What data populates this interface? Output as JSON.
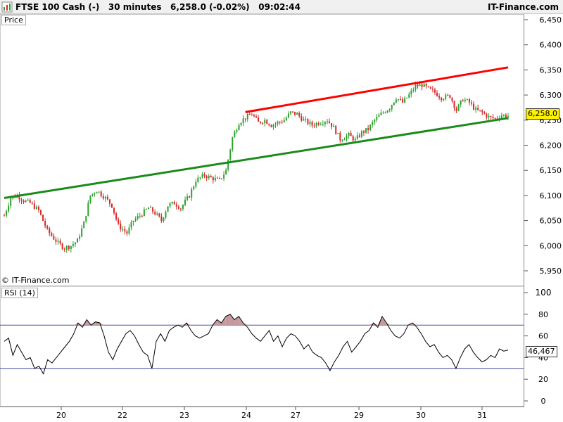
{
  "header": {
    "instrument": "FTSE 100 Cash (-)",
    "timeframe": "30 minutes",
    "quote": "6,258.0 (-0.02%)",
    "time": "09:02:44",
    "brand": "IT-Finance.com",
    "icon": "chart-app-icon"
  },
  "price_panel": {
    "label": "Price",
    "copyright": "© IT-Finance.com",
    "last_price_tag": "6,258.0",
    "last_price": 6258.0,
    "tag_color": "#fff200"
  },
  "rsi_panel": {
    "label": "RSI (14)",
    "value_tag": "46,467",
    "value": 46.467,
    "overbought": 70,
    "oversold": 30
  },
  "colors": {
    "up_candle": "#2ca02c",
    "down_candle": "#d62728",
    "resistance": "#ff0000",
    "support": "#1a8a1a",
    "rsi_line": "#000000",
    "rsi_fill": "#c49aa0",
    "threshold_line": "#4a4aa0"
  },
  "chart_data": [
    {
      "type": "candlestick",
      "title": "FTSE 100 Cash (-)",
      "x_tick_labels": [
        "20",
        "22",
        "23",
        "24",
        "27",
        "29",
        "30",
        "31"
      ],
      "y_tick_labels": [
        "6,450",
        "6,400",
        "6,350",
        "6,300",
        "6,250",
        "6,200",
        "6,150",
        "6,100",
        "6,050",
        "6,000",
        "5,950"
      ],
      "ylim": [
        5920,
        6475
      ],
      "grid": false,
      "close_points": [
        [
          0,
          6060
        ],
        [
          3,
          6095
        ],
        [
          6,
          6100
        ],
        [
          9,
          6090
        ],
        [
          12,
          6085
        ],
        [
          16,
          6070
        ],
        [
          20,
          6030
        ],
        [
          25,
          6005
        ],
        [
          28,
          5995
        ],
        [
          31,
          6000
        ],
        [
          34,
          6010
        ],
        [
          37,
          6045
        ],
        [
          40,
          6100
        ],
        [
          43,
          6110
        ],
        [
          47,
          6095
        ],
        [
          50,
          6080
        ],
        [
          53,
          6040
        ],
        [
          57,
          6025
        ],
        [
          60,
          6050
        ],
        [
          63,
          6060
        ],
        [
          67,
          6075
        ],
        [
          70,
          6065
        ],
        [
          73,
          6050
        ],
        [
          76,
          6080
        ],
        [
          79,
          6085
        ],
        [
          82,
          6075
        ],
        [
          86,
          6100
        ],
        [
          89,
          6130
        ],
        [
          93,
          6140
        ],
        [
          96,
          6135
        ],
        [
          100,
          6130
        ],
        [
          103,
          6150
        ],
        [
          106,
          6215
        ],
        [
          109,
          6245
        ],
        [
          112,
          6255
        ],
        [
          115,
          6262
        ],
        [
          118,
          6245
        ],
        [
          121,
          6250
        ],
        [
          124,
          6240
        ],
        [
          127,
          6245
        ],
        [
          130,
          6250
        ],
        [
          133,
          6265
        ],
        [
          136,
          6262
        ],
        [
          139,
          6250
        ],
        [
          143,
          6240
        ],
        [
          146,
          6245
        ],
        [
          150,
          6250
        ],
        [
          153,
          6235
        ],
        [
          156,
          6212
        ],
        [
          160,
          6220
        ],
        [
          163,
          6210
        ],
        [
          166,
          6225
        ],
        [
          169,
          6232
        ],
        [
          172,
          6250
        ],
        [
          175,
          6262
        ],
        [
          179,
          6275
        ],
        [
          182,
          6295
        ],
        [
          185,
          6285
        ],
        [
          188,
          6300
        ],
        [
          191,
          6318
        ],
        [
          194,
          6320
        ],
        [
          197,
          6312
        ],
        [
          200,
          6305
        ],
        [
          203,
          6295
        ],
        [
          207,
          6298
        ],
        [
          210,
          6270
        ],
        [
          213,
          6292
        ],
        [
          216,
          6285
        ],
        [
          219,
          6270
        ],
        [
          222,
          6265
        ],
        [
          225,
          6256
        ],
        [
          228,
          6253
        ],
        [
          231,
          6260
        ],
        [
          234,
          6258
        ]
      ],
      "trend_lines": [
        {
          "role": "resistance",
          "from": [
            112,
            6266
          ],
          "to": [
            234,
            6355
          ]
        },
        {
          "role": "support",
          "from": [
            0,
            6095
          ],
          "to": [
            234,
            6254
          ]
        }
      ]
    },
    {
      "type": "line",
      "title": "RSI (14)",
      "y_tick_labels": [
        "100",
        "80",
        "60",
        "40",
        "20",
        "0"
      ],
      "ylim": [
        0,
        100
      ],
      "values": [
        [
          0,
          55
        ],
        [
          2,
          58
        ],
        [
          4,
          42
        ],
        [
          6,
          52
        ],
        [
          8,
          45
        ],
        [
          10,
          38
        ],
        [
          12,
          40
        ],
        [
          14,
          30
        ],
        [
          16,
          32
        ],
        [
          18,
          25
        ],
        [
          20,
          38
        ],
        [
          22,
          35
        ],
        [
          24,
          40
        ],
        [
          26,
          45
        ],
        [
          28,
          50
        ],
        [
          30,
          55
        ],
        [
          32,
          62
        ],
        [
          34,
          72
        ],
        [
          36,
          68
        ],
        [
          38,
          75
        ],
        [
          40,
          70
        ],
        [
          42,
          73
        ],
        [
          44,
          72
        ],
        [
          46,
          60
        ],
        [
          48,
          45
        ],
        [
          50,
          38
        ],
        [
          52,
          48
        ],
        [
          54,
          55
        ],
        [
          56,
          62
        ],
        [
          58,
          65
        ],
        [
          60,
          60
        ],
        [
          62,
          52
        ],
        [
          64,
          45
        ],
        [
          66,
          42
        ],
        [
          68,
          30
        ],
        [
          70,
          55
        ],
        [
          72,
          62
        ],
        [
          74,
          55
        ],
        [
          76,
          65
        ],
        [
          78,
          68
        ],
        [
          80,
          70
        ],
        [
          82,
          68
        ],
        [
          84,
          72
        ],
        [
          86,
          65
        ],
        [
          88,
          60
        ],
        [
          90,
          58
        ],
        [
          92,
          60
        ],
        [
          94,
          62
        ],
        [
          96,
          70
        ],
        [
          98,
          75
        ],
        [
          100,
          72
        ],
        [
          102,
          78
        ],
        [
          104,
          80
        ],
        [
          106,
          75
        ],
        [
          108,
          78
        ],
        [
          110,
          72
        ],
        [
          112,
          68
        ],
        [
          114,
          62
        ],
        [
          116,
          58
        ],
        [
          118,
          55
        ],
        [
          120,
          60
        ],
        [
          122,
          65
        ],
        [
          124,
          55
        ],
        [
          126,
          60
        ],
        [
          128,
          50
        ],
        [
          130,
          58
        ],
        [
          132,
          62
        ],
        [
          134,
          60
        ],
        [
          136,
          55
        ],
        [
          138,
          48
        ],
        [
          140,
          52
        ],
        [
          142,
          45
        ],
        [
          144,
          42
        ],
        [
          146,
          40
        ],
        [
          148,
          35
        ],
        [
          150,
          28
        ],
        [
          152,
          36
        ],
        [
          154,
          42
        ],
        [
          156,
          50
        ],
        [
          158,
          55
        ],
        [
          160,
          45
        ],
        [
          162,
          50
        ],
        [
          164,
          55
        ],
        [
          166,
          62
        ],
        [
          168,
          65
        ],
        [
          170,
          72
        ],
        [
          172,
          68
        ],
        [
          174,
          78
        ],
        [
          176,
          72
        ],
        [
          178,
          65
        ],
        [
          180,
          60
        ],
        [
          182,
          58
        ],
        [
          184,
          62
        ],
        [
          186,
          70
        ],
        [
          188,
          72
        ],
        [
          190,
          68
        ],
        [
          192,
          62
        ],
        [
          194,
          55
        ],
        [
          196,
          50
        ],
        [
          198,
          52
        ],
        [
          200,
          45
        ],
        [
          202,
          40
        ],
        [
          204,
          42
        ],
        [
          206,
          38
        ],
        [
          208,
          30
        ],
        [
          210,
          40
        ],
        [
          212,
          48
        ],
        [
          214,
          52
        ],
        [
          216,
          45
        ],
        [
          218,
          40
        ],
        [
          220,
          36
        ],
        [
          222,
          38
        ],
        [
          224,
          42
        ],
        [
          226,
          40
        ],
        [
          228,
          48
        ],
        [
          230,
          46
        ],
        [
          232,
          47
        ]
      ]
    }
  ]
}
